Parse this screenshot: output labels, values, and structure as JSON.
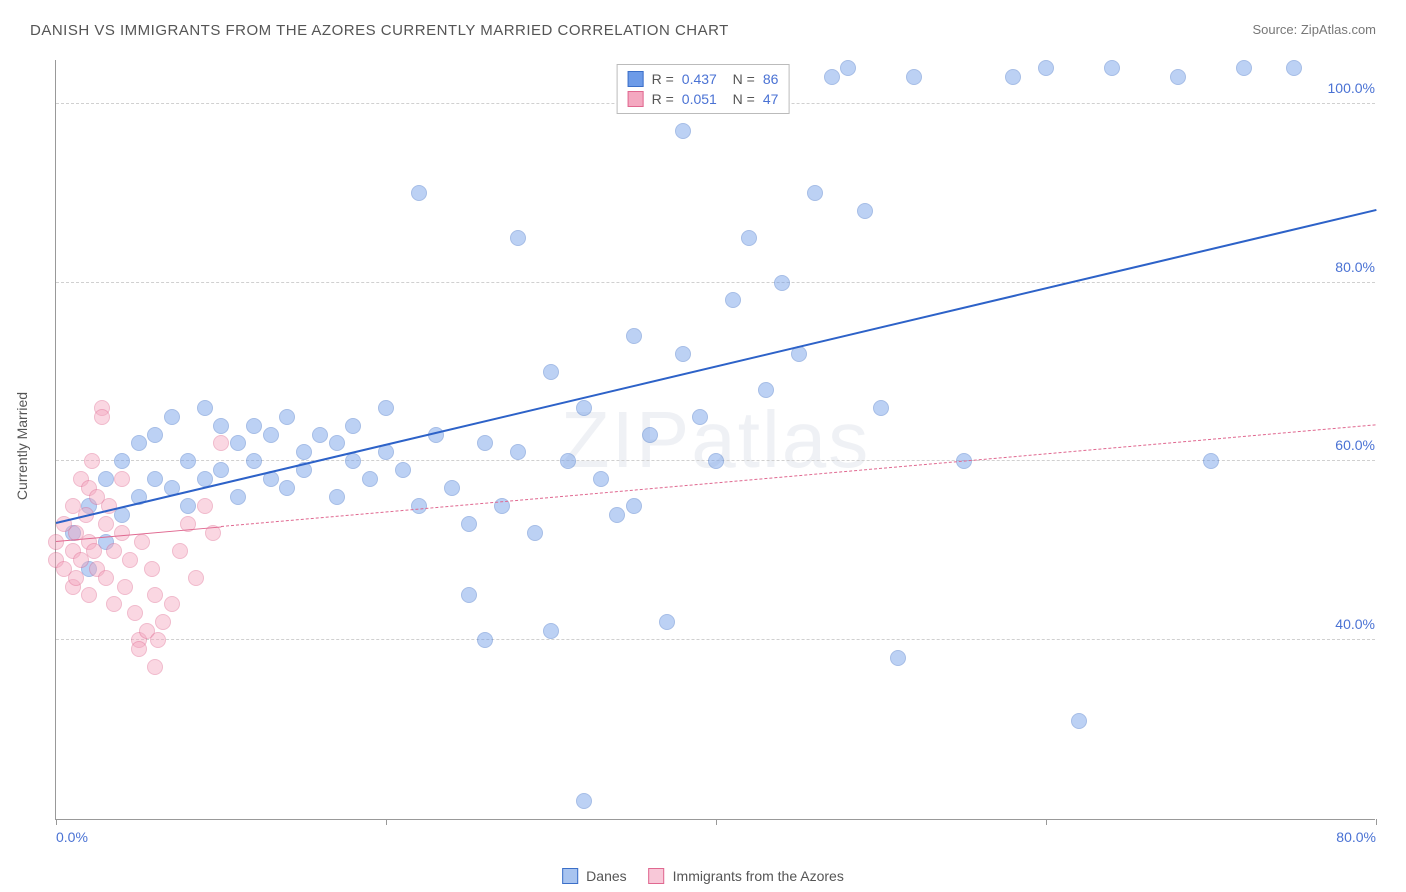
{
  "title": "DANISH VS IMMIGRANTS FROM THE AZORES CURRENTLY MARRIED CORRELATION CHART",
  "source": "Source: ZipAtlas.com",
  "watermark": "ZIPatlas",
  "ylabel": "Currently Married",
  "chart": {
    "type": "scatter",
    "xlim": [
      0,
      80
    ],
    "ylim": [
      20,
      105
    ],
    "xtick_step": 20,
    "ytick_step": 20,
    "x_label_min": "0.0%",
    "x_label_max": "80.0%",
    "y_labels": [
      "40.0%",
      "60.0%",
      "80.0%",
      "100.0%"
    ],
    "y_label_values": [
      40,
      60,
      80,
      100
    ],
    "grid_color": "#d0d0d0",
    "background_color": "#ffffff",
    "point_radius": 8,
    "point_opacity": 0.45,
    "series": [
      {
        "name": "Danes",
        "color": "#6d9be8",
        "stroke": "#3b6fc8",
        "r_value": "0.437",
        "n_value": "86",
        "trend": {
          "x1": 0,
          "y1": 53,
          "x2": 80,
          "y2": 88,
          "width": 2.5,
          "dash": "none",
          "color": "#2d62c8"
        },
        "points": [
          [
            1,
            52
          ],
          [
            2,
            55
          ],
          [
            2,
            48
          ],
          [
            3,
            58
          ],
          [
            3,
            51
          ],
          [
            4,
            60
          ],
          [
            4,
            54
          ],
          [
            5,
            56
          ],
          [
            5,
            62
          ],
          [
            6,
            63
          ],
          [
            6,
            58
          ],
          [
            7,
            57
          ],
          [
            7,
            65
          ],
          [
            8,
            60
          ],
          [
            8,
            55
          ],
          [
            9,
            66
          ],
          [
            9,
            58
          ],
          [
            10,
            64
          ],
          [
            10,
            59
          ],
          [
            11,
            62
          ],
          [
            11,
            56
          ],
          [
            12,
            60
          ],
          [
            12,
            64
          ],
          [
            13,
            58
          ],
          [
            13,
            63
          ],
          [
            14,
            65
          ],
          [
            14,
            57
          ],
          [
            15,
            61
          ],
          [
            15,
            59
          ],
          [
            16,
            63
          ],
          [
            17,
            62
          ],
          [
            17,
            56
          ],
          [
            18,
            60
          ],
          [
            18,
            64
          ],
          [
            19,
            58
          ],
          [
            20,
            66
          ],
          [
            20,
            61
          ],
          [
            21,
            59
          ],
          [
            22,
            55
          ],
          [
            22,
            90
          ],
          [
            23,
            63
          ],
          [
            24,
            57
          ],
          [
            25,
            45
          ],
          [
            25,
            53
          ],
          [
            26,
            40
          ],
          [
            26,
            62
          ],
          [
            27,
            55
          ],
          [
            28,
            61
          ],
          [
            28,
            85
          ],
          [
            29,
            52
          ],
          [
            30,
            41
          ],
          [
            30,
            70
          ],
          [
            31,
            60
          ],
          [
            32,
            66
          ],
          [
            32,
            22
          ],
          [
            33,
            58
          ],
          [
            34,
            54
          ],
          [
            35,
            55
          ],
          [
            35,
            74
          ],
          [
            36,
            63
          ],
          [
            37,
            42
          ],
          [
            38,
            72
          ],
          [
            38,
            97
          ],
          [
            39,
            65
          ],
          [
            40,
            60
          ],
          [
            41,
            78
          ],
          [
            42,
            85
          ],
          [
            43,
            68
          ],
          [
            44,
            80
          ],
          [
            45,
            72
          ],
          [
            46,
            90
          ],
          [
            47,
            103
          ],
          [
            48,
            104
          ],
          [
            49,
            88
          ],
          [
            50,
            66
          ],
          [
            51,
            38
          ],
          [
            52,
            103
          ],
          [
            55,
            60
          ],
          [
            58,
            103
          ],
          [
            60,
            104
          ],
          [
            62,
            31
          ],
          [
            64,
            104
          ],
          [
            68,
            103
          ],
          [
            70,
            60
          ],
          [
            72,
            104
          ],
          [
            75,
            104
          ]
        ]
      },
      {
        "name": "Immigrants from the Azores",
        "color": "#f4a8c0",
        "stroke": "#e06890",
        "r_value": "0.051",
        "n_value": "47",
        "trend": {
          "x1": 0,
          "y1": 51,
          "x2": 80,
          "y2": 64,
          "width": 1.5,
          "dash": "4 4",
          "color": "#e06890",
          "solid_until": 10
        },
        "points": [
          [
            0,
            49
          ],
          [
            0,
            51
          ],
          [
            0.5,
            48
          ],
          [
            0.5,
            53
          ],
          [
            1,
            50
          ],
          [
            1,
            46
          ],
          [
            1,
            55
          ],
          [
            1.2,
            52
          ],
          [
            1.2,
            47
          ],
          [
            1.5,
            58
          ],
          [
            1.5,
            49
          ],
          [
            1.8,
            54
          ],
          [
            2,
            51
          ],
          [
            2,
            45
          ],
          [
            2,
            57
          ],
          [
            2.2,
            60
          ],
          [
            2.3,
            50
          ],
          [
            2.5,
            48
          ],
          [
            2.5,
            56
          ],
          [
            2.8,
            66
          ],
          [
            2.8,
            65
          ],
          [
            3,
            53
          ],
          [
            3,
            47
          ],
          [
            3.2,
            55
          ],
          [
            3.5,
            44
          ],
          [
            3.5,
            50
          ],
          [
            4,
            52
          ],
          [
            4,
            58
          ],
          [
            4.2,
            46
          ],
          [
            4.5,
            49
          ],
          [
            4.8,
            43
          ],
          [
            5,
            40
          ],
          [
            5,
            39
          ],
          [
            5.2,
            51
          ],
          [
            5.5,
            41
          ],
          [
            5.8,
            48
          ],
          [
            6,
            45
          ],
          [
            6,
            37
          ],
          [
            6.2,
            40
          ],
          [
            6.5,
            42
          ],
          [
            7,
            44
          ],
          [
            7.5,
            50
          ],
          [
            8,
            53
          ],
          [
            8.5,
            47
          ],
          [
            9,
            55
          ],
          [
            9.5,
            52
          ],
          [
            10,
            62
          ]
        ]
      }
    ]
  },
  "legend_bottom": [
    {
      "label": "Danes",
      "fill": "#a8c4f0",
      "border": "#3b6fc8"
    },
    {
      "label": "Immigrants from the Azores",
      "fill": "#f8c8d8",
      "border": "#e06890"
    }
  ]
}
